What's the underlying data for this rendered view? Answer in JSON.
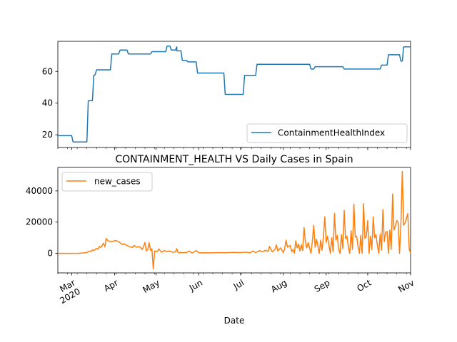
{
  "chart_data": [
    {
      "type": "line",
      "title": "",
      "xlabel": "",
      "ylabel": "",
      "x_range": [
        "2020-02-20",
        "2020-11-01"
      ],
      "ylim": [
        12,
        79
      ],
      "yticks": [
        20,
        40,
        60
      ],
      "ytick_labels": [
        "20",
        "40",
        "60"
      ],
      "legend_position": "lower-right",
      "grid": false,
      "series": [
        {
          "name": "ContainmentHealthIndex",
          "color": "#1f77b4",
          "points": [
            [
              "2020-02-20",
              19.5
            ],
            [
              "2020-03-01",
              19.5
            ],
            [
              "2020-03-02",
              15.5
            ],
            [
              "2020-03-12",
              15.5
            ],
            [
              "2020-03-13",
              41.5
            ],
            [
              "2020-03-16",
              41.5
            ],
            [
              "2020-03-17",
              57.5
            ],
            [
              "2020-03-18",
              58
            ],
            [
              "2020-03-19",
              61
            ],
            [
              "2020-03-29",
              61
            ],
            [
              "2020-03-30",
              71
            ],
            [
              "2020-04-04",
              71
            ],
            [
              "2020-04-05",
              73.5
            ],
            [
              "2020-04-10",
              73.5
            ],
            [
              "2020-04-11",
              71
            ],
            [
              "2020-04-27",
              71
            ],
            [
              "2020-04-28",
              72.5
            ],
            [
              "2020-05-08",
              72.5
            ],
            [
              "2020-05-09",
              76
            ],
            [
              "2020-05-11",
              76
            ],
            [
              "2020-05-12",
              73.5
            ],
            [
              "2020-05-15",
              73.5
            ],
            [
              "2020-05-16",
              75.5
            ],
            [
              "2020-05-16",
              73
            ],
            [
              "2020-05-19",
              73
            ],
            [
              "2020-05-20",
              67
            ],
            [
              "2020-05-23",
              67
            ],
            [
              "2020-05-24",
              66
            ],
            [
              "2020-05-30",
              66
            ],
            [
              "2020-05-31",
              59
            ],
            [
              "2020-06-19",
              59
            ],
            [
              "2020-06-20",
              45.5
            ],
            [
              "2020-07-03",
              45.5
            ],
            [
              "2020-07-04",
              57.5
            ],
            [
              "2020-07-12",
              57.5
            ],
            [
              "2020-07-13",
              64.5
            ],
            [
              "2020-08-20",
              64.5
            ],
            [
              "2020-08-21",
              61.5
            ],
            [
              "2020-08-23",
              61.5
            ],
            [
              "2020-08-24",
              63
            ],
            [
              "2020-09-13",
              63
            ],
            [
              "2020-09-14",
              61.5
            ],
            [
              "2020-10-10",
              61.5
            ],
            [
              "2020-10-11",
              64
            ],
            [
              "2020-10-15",
              64
            ],
            [
              "2020-10-16",
              70.5
            ],
            [
              "2020-10-24",
              70.5
            ],
            [
              "2020-10-25",
              66.5
            ],
            [
              "2020-10-26",
              66.5
            ],
            [
              "2020-10-27",
              75.5
            ],
            [
              "2020-11-01",
              75.5
            ]
          ]
        }
      ]
    },
    {
      "type": "line",
      "title": "CONTAINMENT_HEALTH VS Daily Cases in Spain",
      "xlabel": "Date",
      "ylabel": "",
      "x_range": [
        "2020-02-20",
        "2020-11-01"
      ],
      "ylim": [
        -12500,
        55000
      ],
      "yticks": [
        0,
        20000,
        40000
      ],
      "ytick_labels": [
        "0",
        "20000",
        "40000"
      ],
      "legend_position": "upper-left",
      "grid": false,
      "xticks": [
        "2020-03-01",
        "2020-04-01",
        "2020-05-01",
        "2020-06-01",
        "2020-07-01",
        "2020-08-01",
        "2020-09-01",
        "2020-10-01",
        "2020-11-01"
      ],
      "xtick_labels": [
        {
          "line1": "Mar",
          "line2": "2020"
        },
        {
          "line1": "Apr",
          "line2": ""
        },
        {
          "line1": "May",
          "line2": ""
        },
        {
          "line1": "Jun",
          "line2": ""
        },
        {
          "line1": "Jul",
          "line2": ""
        },
        {
          "line1": "Aug",
          "line2": ""
        },
        {
          "line1": "Sep",
          "line2": ""
        },
        {
          "line1": "Oct",
          "line2": ""
        },
        {
          "line1": "Nov",
          "line2": ""
        }
      ],
      "series": [
        {
          "name": "new_cases",
          "color": "#ff7f0e",
          "points": [
            [
              "2020-02-20",
              0
            ],
            [
              "2020-03-06",
              50
            ],
            [
              "2020-03-10",
              300
            ],
            [
              "2020-03-12",
              600
            ],
            [
              "2020-03-14",
              1500
            ],
            [
              "2020-03-15",
              1200
            ],
            [
              "2020-03-16",
              2200
            ],
            [
              "2020-03-17",
              1800
            ],
            [
              "2020-03-18",
              2500
            ],
            [
              "2020-03-19",
              3200
            ],
            [
              "2020-03-20",
              2600
            ],
            [
              "2020-03-21",
              4500
            ],
            [
              "2020-03-22",
              3800
            ],
            [
              "2020-03-23",
              5000
            ],
            [
              "2020-03-24",
              6500
            ],
            [
              "2020-03-25",
              4200
            ],
            [
              "2020-03-26",
              9500
            ],
            [
              "2020-03-27",
              8300
            ],
            [
              "2020-03-28",
              7800
            ],
            [
              "2020-03-29",
              7500
            ],
            [
              "2020-03-31",
              7800
            ],
            [
              "2020-04-02",
              8200
            ],
            [
              "2020-04-04",
              7500
            ],
            [
              "2020-04-06",
              6000
            ],
            [
              "2020-04-07",
              5500
            ],
            [
              "2020-04-08",
              6200
            ],
            [
              "2020-04-10",
              5000
            ],
            [
              "2020-04-12",
              4200
            ],
            [
              "2020-04-14",
              3800
            ],
            [
              "2020-04-15",
              5000
            ],
            [
              "2020-04-17",
              4000
            ],
            [
              "2020-04-19",
              4300
            ],
            [
              "2020-04-21",
              2500
            ],
            [
              "2020-04-22",
              4500
            ],
            [
              "2020-04-23",
              7000
            ],
            [
              "2020-04-24",
              1500
            ],
            [
              "2020-04-25",
              2500
            ],
            [
              "2020-04-26",
              6800
            ],
            [
              "2020-04-27",
              1800
            ],
            [
              "2020-04-28",
              2800
            ],
            [
              "2020-04-29",
              -10000
            ],
            [
              "2020-04-30",
              1500
            ],
            [
              "2020-05-02",
              1200
            ],
            [
              "2020-05-03",
              2800
            ],
            [
              "2020-05-05",
              700
            ],
            [
              "2020-05-07",
              1800
            ],
            [
              "2020-05-09",
              1200
            ],
            [
              "2020-05-11",
              1500
            ],
            [
              "2020-05-13",
              700
            ],
            [
              "2020-05-15",
              900
            ],
            [
              "2020-05-16",
              3000
            ],
            [
              "2020-05-17",
              300
            ],
            [
              "2020-05-19",
              600
            ],
            [
              "2020-05-21",
              400
            ],
            [
              "2020-05-23",
              500
            ],
            [
              "2020-05-25",
              1500
            ],
            [
              "2020-05-27",
              200
            ],
            [
              "2020-05-30",
              1800
            ],
            [
              "2020-06-01",
              300
            ],
            [
              "2020-06-05",
              400
            ],
            [
              "2020-06-10",
              300
            ],
            [
              "2020-06-15",
              500
            ],
            [
              "2020-06-20",
              400
            ],
            [
              "2020-06-25",
              600
            ],
            [
              "2020-07-01",
              500
            ],
            [
              "2020-07-05",
              800
            ],
            [
              "2020-07-08",
              300
            ],
            [
              "2020-07-10",
              1500
            ],
            [
              "2020-07-12",
              500
            ],
            [
              "2020-07-15",
              1800
            ],
            [
              "2020-07-17",
              900
            ],
            [
              "2020-07-19",
              2000
            ],
            [
              "2020-07-21",
              1200
            ],
            [
              "2020-07-22",
              4500
            ],
            [
              "2020-07-24",
              1000
            ],
            [
              "2020-07-26",
              2500
            ],
            [
              "2020-07-27",
              5500
            ],
            [
              "2020-07-28",
              1500
            ],
            [
              "2020-07-30",
              3500
            ],
            [
              "2020-08-01",
              500
            ],
            [
              "2020-08-02",
              3000
            ],
            [
              "2020-08-03",
              8500
            ],
            [
              "2020-08-04",
              4000
            ],
            [
              "2020-08-06",
              5000
            ],
            [
              "2020-08-07",
              1200
            ],
            [
              "2020-08-08",
              2500
            ],
            [
              "2020-08-09",
              0
            ],
            [
              "2020-08-10",
              8000
            ],
            [
              "2020-08-11",
              3500
            ],
            [
              "2020-08-12",
              6000
            ],
            [
              "2020-08-13",
              1500
            ],
            [
              "2020-08-14",
              5500
            ],
            [
              "2020-08-15",
              1800
            ],
            [
              "2020-08-16",
              16500
            ],
            [
              "2020-08-17",
              7000
            ],
            [
              "2020-08-18",
              3500
            ],
            [
              "2020-08-19",
              7000
            ],
            [
              "2020-08-20",
              3500
            ],
            [
              "2020-08-21",
              0
            ],
            [
              "2020-08-22",
              8000
            ],
            [
              "2020-08-23",
              18000
            ],
            [
              "2020-08-24",
              4000
            ],
            [
              "2020-08-25",
              9000
            ],
            [
              "2020-08-26",
              4500
            ],
            [
              "2020-08-27",
              0
            ],
            [
              "2020-08-28",
              8500
            ],
            [
              "2020-08-29",
              2000
            ],
            [
              "2020-08-30",
              10500
            ],
            [
              "2020-08-31",
              23500
            ],
            [
              "2020-09-01",
              7000
            ],
            [
              "2020-09-02",
              11000
            ],
            [
              "2020-09-03",
              5000
            ],
            [
              "2020-09-04",
              0
            ],
            [
              "2020-09-05",
              10000
            ],
            [
              "2020-09-06",
              1000
            ],
            [
              "2020-09-07",
              25500
            ],
            [
              "2020-09-08",
              8500
            ],
            [
              "2020-09-09",
              11500
            ],
            [
              "2020-09-10",
              2500
            ],
            [
              "2020-09-11",
              0
            ],
            [
              "2020-09-12",
              12000
            ],
            [
              "2020-09-13",
              3000
            ],
            [
              "2020-09-14",
              27500
            ],
            [
              "2020-09-15",
              9500
            ],
            [
              "2020-09-16",
              11000
            ],
            [
              "2020-09-17",
              4000
            ],
            [
              "2020-09-18",
              0
            ],
            [
              "2020-09-19",
              14500
            ],
            [
              "2020-09-20",
              2500
            ],
            [
              "2020-09-21",
              31500
            ],
            [
              "2020-09-22",
              10500
            ],
            [
              "2020-09-23",
              11000
            ],
            [
              "2020-09-24",
              4500
            ],
            [
              "2020-09-25",
              0
            ],
            [
              "2020-09-26",
              11500
            ],
            [
              "2020-09-27",
              0
            ],
            [
              "2020-09-28",
              31800
            ],
            [
              "2020-09-29",
              9500
            ],
            [
              "2020-09-30",
              11000
            ],
            [
              "2020-10-01",
              21000
            ],
            [
              "2020-10-02",
              0
            ],
            [
              "2020-10-03",
              11000
            ],
            [
              "2020-10-04",
              2500
            ],
            [
              "2020-10-05",
              23500
            ],
            [
              "2020-10-06",
              10000
            ],
            [
              "2020-10-07",
              12000
            ],
            [
              "2020-10-08",
              5000
            ],
            [
              "2020-10-09",
              0
            ],
            [
              "2020-10-10",
              12500
            ],
            [
              "2020-10-11",
              2000
            ],
            [
              "2020-10-12",
              28000
            ],
            [
              "2020-10-13",
              7500
            ],
            [
              "2020-10-14",
              13500
            ],
            [
              "2020-10-15",
              14000
            ],
            [
              "2020-10-16",
              0
            ],
            [
              "2020-10-17",
              15000
            ],
            [
              "2020-10-18",
              2500
            ],
            [
              "2020-10-19",
              38000
            ],
            [
              "2020-10-20",
              15000
            ],
            [
              "2020-10-21",
              17500
            ],
            [
              "2020-10-22",
              21000
            ],
            [
              "2020-10-23",
              20000
            ],
            [
              "2020-10-24",
              0
            ],
            [
              "2020-10-25",
              18500
            ],
            [
              "2020-10-26",
              52500
            ],
            [
              "2020-10-27",
              18000
            ],
            [
              "2020-10-28",
              19500
            ],
            [
              "2020-10-29",
              22500
            ],
            [
              "2020-10-30",
              25500
            ],
            [
              "2020-10-31",
              3000
            ],
            [
              "2020-11-01",
              0
            ]
          ]
        }
      ]
    }
  ]
}
